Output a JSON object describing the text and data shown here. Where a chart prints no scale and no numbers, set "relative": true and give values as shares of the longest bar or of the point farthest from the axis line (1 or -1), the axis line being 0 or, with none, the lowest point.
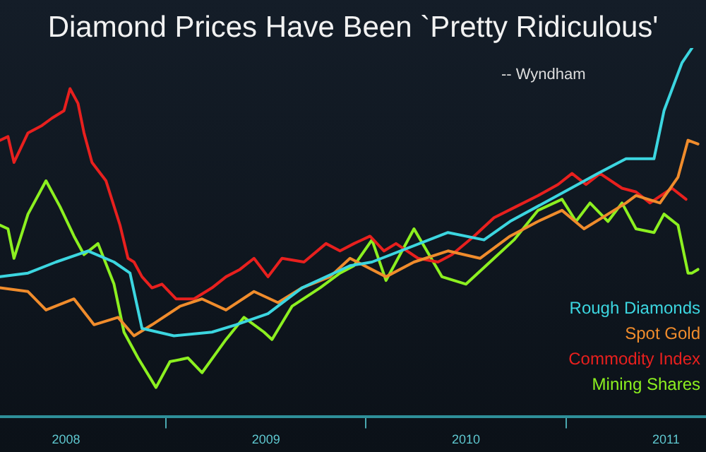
{
  "chart_data": {
    "type": "line",
    "title": "Diamond Prices Have Been `Pretty Ridiculous'",
    "annotations": [
      "-- Wyndham"
    ],
    "relative": true,
    "grid": false,
    "legend": "right",
    "marker": "none",
    "xlim": [
      2008.17,
      2011.7
    ],
    "xticks": [
      {
        "value": 2008.5,
        "label": "2008"
      },
      {
        "value": 2009,
        "label": null
      },
      {
        "value": 2009.5,
        "label": "2009"
      },
      {
        "value": 2010,
        "label": null
      },
      {
        "value": 2010.5,
        "label": "2010"
      },
      {
        "value": 2011,
        "label": null
      },
      {
        "value": 2011.5,
        "label": "2011"
      }
    ],
    "series": [
      {
        "name": "Rough Diamonds",
        "color": "#3cd6e0",
        "x": [
          2008.17,
          2008.31,
          2008.45,
          2008.61,
          2008.74,
          2008.82,
          2008.88,
          2009.04,
          2009.23,
          2009.35,
          2009.51,
          2009.68,
          2009.92,
          2010.03,
          2010.41,
          2010.59,
          2010.72,
          2011.16,
          2011.3,
          2011.44,
          2011.49,
          2011.58,
          2011.63
        ],
        "values": [
          0.38,
          0.39,
          0.42,
          0.45,
          0.42,
          0.39,
          0.24,
          0.22,
          0.23,
          0.25,
          0.28,
          0.35,
          0.41,
          0.42,
          0.5,
          0.48,
          0.53,
          0.66,
          0.7,
          0.7,
          0.83,
          0.96,
          1.0
        ]
      },
      {
        "name": "Spot Gold",
        "color": "#f08c2c",
        "x": [
          2008.17,
          2008.31,
          2008.4,
          2008.54,
          2008.64,
          2008.76,
          2008.84,
          2008.93,
          2009.07,
          2009.18,
          2009.3,
          2009.44,
          2009.56,
          2009.68,
          2009.82,
          2009.92,
          2010.1,
          2010.24,
          2010.41,
          2010.57,
          2010.72,
          2010.86,
          2010.98,
          2011.09,
          2011.21,
          2011.3,
          2011.35,
          2011.47,
          2011.56,
          2011.61,
          2011.66
        ],
        "values": [
          0.35,
          0.34,
          0.29,
          0.32,
          0.25,
          0.27,
          0.22,
          0.25,
          0.3,
          0.32,
          0.29,
          0.34,
          0.31,
          0.35,
          0.38,
          0.43,
          0.38,
          0.42,
          0.45,
          0.43,
          0.49,
          0.53,
          0.56,
          0.51,
          0.55,
          0.58,
          0.6,
          0.58,
          0.65,
          0.75,
          0.74
        ]
      },
      {
        "name": "Commodity Index",
        "color": "#e8201e",
        "x": [
          2008.17,
          2008.21,
          2008.24,
          2008.31,
          2008.38,
          2008.43,
          2008.49,
          2008.52,
          2008.56,
          2008.59,
          2008.63,
          2008.7,
          2008.77,
          2008.81,
          2008.84,
          2008.88,
          2008.93,
          2008.98,
          2009.05,
          2009.14,
          2009.23,
          2009.3,
          2009.37,
          2009.44,
          2009.51,
          2009.58,
          2009.69,
          2009.8,
          2009.87,
          2009.94,
          2010.02,
          2010.09,
          2010.15,
          2010.26,
          2010.36,
          2010.43,
          2010.54,
          2010.64,
          2010.75,
          2010.86,
          2010.96,
          2011.03,
          2011.1,
          2011.17,
          2011.28,
          2011.35,
          2011.42,
          2011.53,
          2011.6
        ],
        "values": [
          0.75,
          0.76,
          0.69,
          0.77,
          0.79,
          0.81,
          0.83,
          0.89,
          0.85,
          0.77,
          0.69,
          0.64,
          0.52,
          0.43,
          0.42,
          0.38,
          0.35,
          0.36,
          0.32,
          0.32,
          0.35,
          0.38,
          0.4,
          0.43,
          0.38,
          0.43,
          0.42,
          0.47,
          0.45,
          0.47,
          0.49,
          0.45,
          0.47,
          0.43,
          0.42,
          0.44,
          0.49,
          0.54,
          0.57,
          0.6,
          0.63,
          0.66,
          0.63,
          0.66,
          0.62,
          0.61,
          0.58,
          0.62,
          0.59
        ]
      },
      {
        "name": "Mining Shares",
        "color": "#8cf020",
        "x": [
          2008.17,
          2008.21,
          2008.24,
          2008.31,
          2008.4,
          2008.47,
          2008.54,
          2008.59,
          2008.66,
          2008.74,
          2008.79,
          2008.86,
          2008.95,
          2009.02,
          2009.11,
          2009.18,
          2009.3,
          2009.39,
          2009.49,
          2009.53,
          2009.63,
          2009.77,
          2009.87,
          2009.94,
          2010.03,
          2010.1,
          2010.24,
          2010.38,
          2010.5,
          2010.64,
          2010.74,
          2010.86,
          2010.98,
          2011.05,
          2011.12,
          2011.21,
          2011.28,
          2011.35,
          2011.44,
          2011.49,
          2011.56,
          2011.61,
          2011.63,
          2011.66
        ],
        "values": [
          0.52,
          0.51,
          0.43,
          0.55,
          0.64,
          0.57,
          0.49,
          0.44,
          0.47,
          0.36,
          0.23,
          0.16,
          0.08,
          0.15,
          0.16,
          0.12,
          0.21,
          0.27,
          0.23,
          0.21,
          0.3,
          0.35,
          0.39,
          0.41,
          0.48,
          0.37,
          0.51,
          0.38,
          0.36,
          0.43,
          0.48,
          0.56,
          0.59,
          0.53,
          0.58,
          0.53,
          0.58,
          0.51,
          0.5,
          0.55,
          0.52,
          0.39,
          0.39,
          0.4
        ]
      }
    ]
  }
}
